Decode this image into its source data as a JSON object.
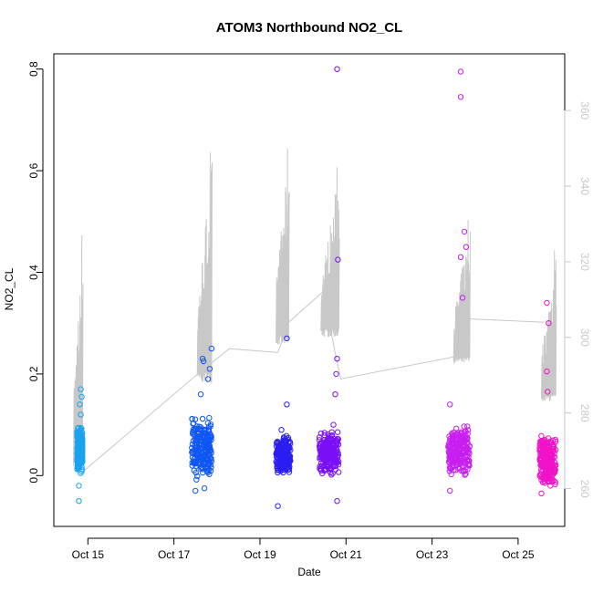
{
  "chart_data": {
    "type": "scatter",
    "title": "ATOM3 Northbound NO2_CL",
    "xlabel": "Date",
    "ylabel": "NO2_CL",
    "x_ticks": [
      "Oct 15",
      "Oct 17",
      "Oct 19",
      "Oct 21",
      "Oct 23",
      "Oct 25"
    ],
    "xlim": [
      "2023-10-14 05:00",
      "2023-10-26 02:00"
    ],
    "ylim": [
      -0.1,
      0.83
    ],
    "y_ticks": [
      0.0,
      0.2,
      0.4,
      0.6,
      0.8
    ],
    "y_tick_labels": [
      "0.0",
      "0.2",
      "0.4",
      "0.6",
      "0.8"
    ],
    "y2lim": [
      250,
      375
    ],
    "y2_ticks": [
      260,
      280,
      300,
      320,
      340,
      360
    ],
    "y2_tick_labels": [
      "260",
      "280",
      "300",
      "320",
      "340",
      "360"
    ],
    "grid": false,
    "series": [
      {
        "color": "#1aa3ef",
        "x_range": [
          "2023-10-14 18:00",
          "2023-10-14 21:00"
        ],
        "bulk_range": [
          0.0,
          0.1
        ],
        "points": [
          {
            "x": "2023-10-14 19:00",
            "y": -0.05
          },
          {
            "x": "2023-10-14 20:00",
            "y": 0.17
          },
          {
            "x": "2023-10-14 20:30",
            "y": 0.155
          },
          {
            "x": "2023-10-14 19:30",
            "y": 0.14
          },
          {
            "x": "2023-10-14 20:00",
            "y": 0.12
          },
          {
            "x": "2023-10-14 19:00",
            "y": -0.02
          }
        ]
      },
      {
        "color": "#0f57f3",
        "x_range": [
          "2023-10-17 10:00",
          "2023-10-17 21:00"
        ],
        "bulk_range": [
          -0.01,
          0.12
        ],
        "points": [
          {
            "x": "2023-10-17 21:00",
            "y": 0.25
          },
          {
            "x": "2023-10-17 16:00",
            "y": 0.23
          },
          {
            "x": "2023-10-17 16:30",
            "y": 0.225
          },
          {
            "x": "2023-10-17 20:00",
            "y": 0.21
          },
          {
            "x": "2023-10-17 19:00",
            "y": 0.19
          },
          {
            "x": "2023-10-17 15:00",
            "y": 0.16
          },
          {
            "x": "2023-10-17 12:00",
            "y": -0.03
          },
          {
            "x": "2023-10-17 17:00",
            "y": -0.025
          }
        ]
      },
      {
        "color": "#2a1ef2",
        "x_range": [
          "2023-10-19 09:00",
          "2023-10-19 17:00"
        ],
        "bulk_range": [
          0.0,
          0.08
        ],
        "points": [
          {
            "x": "2023-10-19 15:00",
            "y": 0.27
          },
          {
            "x": "2023-10-19 15:00",
            "y": 0.14
          },
          {
            "x": "2023-10-19 10:00",
            "y": -0.06
          },
          {
            "x": "2023-10-19 12:00",
            "y": 0.09
          }
        ]
      },
      {
        "color": "#7a10f5",
        "x_range": [
          "2023-10-20 09:00",
          "2023-10-20 20:00"
        ],
        "bulk_range": [
          0.0,
          0.09
        ],
        "points": [
          {
            "x": "2023-10-20 19:00",
            "y": 0.8
          },
          {
            "x": "2023-10-20 19:30",
            "y": 0.425
          },
          {
            "x": "2023-10-20 19:00",
            "y": 0.23
          },
          {
            "x": "2023-10-20 18:30",
            "y": 0.2
          },
          {
            "x": "2023-10-20 18:00",
            "y": 0.16
          },
          {
            "x": "2023-10-20 19:00",
            "y": -0.05
          },
          {
            "x": "2023-10-20 17:00",
            "y": 0.1
          }
        ]
      },
      {
        "color": "#c81ef0",
        "x_range": [
          "2023-10-23 09:00",
          "2023-10-23 21:00"
        ],
        "bulk_range": [
          0.0,
          0.1
        ],
        "points": [
          {
            "x": "2023-10-23 16:00",
            "y": 0.795
          },
          {
            "x": "2023-10-23 16:00",
            "y": 0.745
          },
          {
            "x": "2023-10-23 18:00",
            "y": 0.48
          },
          {
            "x": "2023-10-23 16:00",
            "y": 0.43
          },
          {
            "x": "2023-10-23 17:00",
            "y": 0.35
          },
          {
            "x": "2023-10-23 10:00",
            "y": 0.14
          },
          {
            "x": "2023-10-23 10:00",
            "y": -0.03
          },
          {
            "x": "2023-10-23 19:00",
            "y": 0.45
          }
        ]
      },
      {
        "color": "#f012c8",
        "x_range": [
          "2023-10-25 12:00",
          "2023-10-25 21:00"
        ],
        "bulk_range": [
          -0.02,
          0.08
        ],
        "points": [
          {
            "x": "2023-10-25 16:00",
            "y": 0.34
          },
          {
            "x": "2023-10-25 17:00",
            "y": 0.3
          },
          {
            "x": "2023-10-25 16:00",
            "y": 0.205
          },
          {
            "x": "2023-10-25 16:30",
            "y": 0.165
          },
          {
            "x": "2023-10-25 13:00",
            "y": -0.035
          },
          {
            "x": "2023-10-25 18:00",
            "y": -0.02
          }
        ]
      }
    ],
    "secondary_line": {
      "color": "#c8c8c8",
      "connector_points": [
        {
          "x": "2023-10-14 20:00",
          "y": 264
        },
        {
          "x": "2023-10-17 15:00",
          "y": 291
        },
        {
          "x": "2023-10-18 07:00",
          "y": 297
        },
        {
          "x": "2023-10-19 10:00",
          "y": 296
        },
        {
          "x": "2023-10-19 16:00",
          "y": 304
        },
        {
          "x": "2023-10-20 11:00",
          "y": 312
        },
        {
          "x": "2023-10-20 21:00",
          "y": 289
        },
        {
          "x": "2023-10-23 14:00",
          "y": 295
        },
        {
          "x": "2023-10-23 16:00",
          "y": 305
        },
        {
          "x": "2023-10-25 15:00",
          "y": 304
        }
      ],
      "bursts": [
        {
          "start": "2023-10-14 16:00",
          "end": "2023-10-14 21:00",
          "low": 266,
          "high": 327
        },
        {
          "start": "2023-10-17 13:00",
          "end": "2023-10-17 21:00",
          "low": 288,
          "high": 349
        },
        {
          "start": "2023-10-19 09:00",
          "end": "2023-10-19 16:00",
          "low": 298,
          "high": 350
        },
        {
          "start": "2023-10-20 10:00",
          "end": "2023-10-20 20:00",
          "low": 300,
          "high": 345
        },
        {
          "start": "2023-10-23 12:00",
          "end": "2023-10-23 21:00",
          "low": 293,
          "high": 331
        },
        {
          "start": "2023-10-25 13:00",
          "end": "2023-10-25 21:00",
          "low": 283,
          "high": 323
        }
      ]
    }
  }
}
